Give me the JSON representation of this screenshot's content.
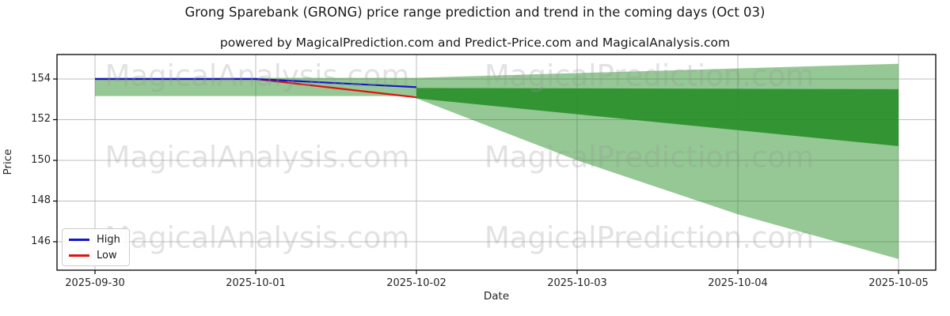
{
  "title": "Grong Sparebank (GRONG) price range prediction and trend in the coming days (Oct 03)",
  "subtitle": "powered by MagicalPrediction.com and Predict-Price.com and MagicalAnalysis.com",
  "watermarks": {
    "analysis": "MagicalAnalysis.com",
    "prediction": "MagicalPrediction.com"
  },
  "legend": {
    "high_label": "High",
    "low_label": "Low"
  },
  "axes": {
    "x_label": "Date",
    "y_label": "Price"
  },
  "colors": {
    "high_line": "#1515cc",
    "low_line": "#e01212",
    "band_green": "#228b22",
    "grid": "#bdbdbd",
    "spine": "#000000"
  },
  "chart_data": {
    "type": "line",
    "title": "Grong Sparebank (GRONG) price range prediction and trend in the coming days (Oct 03)",
    "xlabel": "Date",
    "ylabel": "Price",
    "x": [
      "2025-09-30",
      "2025-10-01",
      "2025-10-02",
      "2025-10-03",
      "2025-10-04",
      "2025-10-05"
    ],
    "y_ticks": [
      146,
      148,
      150,
      152,
      154
    ],
    "ylim": [
      144.6,
      155.2
    ],
    "grid": true,
    "legend_position": "lower-left",
    "series": [
      {
        "name": "High",
        "color": "#1515cc",
        "x": [
          "2025-09-30",
          "2025-10-01",
          "2025-10-02"
        ],
        "values": [
          154.0,
          154.0,
          153.6
        ]
      },
      {
        "name": "Low",
        "color": "#e01212",
        "x": [
          "2025-09-30",
          "2025-10-01",
          "2025-10-02"
        ],
        "values": [
          154.0,
          154.0,
          153.1
        ]
      }
    ],
    "bands": [
      {
        "name": "historical-range",
        "opacity": 0.48,
        "x": [
          "2025-09-30",
          "2025-10-02"
        ],
        "upper": [
          154.06,
          154.06
        ],
        "lower": [
          153.16,
          153.16
        ]
      },
      {
        "name": "prediction-outer-range",
        "opacity": 0.48,
        "x": [
          "2025-10-02",
          "2025-10-03",
          "2025-10-04",
          "2025-10-05"
        ],
        "upper": [
          154.06,
          154.29,
          154.52,
          154.75
        ],
        "lower": [
          153.05,
          150.0,
          147.35,
          145.15
        ]
      },
      {
        "name": "prediction-inner-range",
        "opacity": 0.85,
        "x": [
          "2025-10-02",
          "2025-10-05"
        ],
        "upper": [
          153.56,
          153.5
        ],
        "lower": [
          153.05,
          150.7
        ]
      }
    ]
  }
}
